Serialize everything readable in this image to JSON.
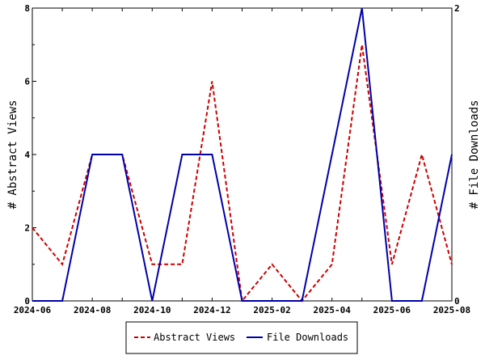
{
  "chart_data": {
    "type": "line",
    "x": [
      "2024-06",
      "2024-07",
      "2024-08",
      "2024-09",
      "2024-10",
      "2024-11",
      "2024-12",
      "2025-01",
      "2025-02",
      "2025-03",
      "2025-04",
      "2025-05",
      "2025-06",
      "2025-07",
      "2025-08"
    ],
    "x_tick_labels": [
      "2024-06",
      "2024-08",
      "2024-10",
      "2024-12",
      "2025-02",
      "2025-04",
      "2025-06",
      "2025-08"
    ],
    "series": [
      {
        "name": "Abstract Views",
        "axis": "left",
        "color": "#cc0000",
        "style": "dashed",
        "values": [
          2,
          1,
          4,
          4,
          1,
          1,
          6,
          0,
          1,
          0,
          1,
          7,
          1,
          4,
          1
        ]
      },
      {
        "name": "File Downloads",
        "axis": "right",
        "color": "#0000aa",
        "style": "solid",
        "values": [
          0,
          0,
          1,
          1,
          0,
          1,
          1,
          0,
          0,
          0,
          1,
          2,
          0,
          0,
          1
        ]
      }
    ],
    "ylabel_left": "# Abstract Views",
    "ylabel_right": "# File Downloads",
    "ylim_left": [
      0,
      8
    ],
    "yticks_left": [
      0,
      2,
      4,
      6,
      8
    ],
    "ylim_right": [
      0,
      2
    ],
    "yticks_right": [
      0,
      2
    ],
    "legend": "bottom-center",
    "grid": false
  }
}
